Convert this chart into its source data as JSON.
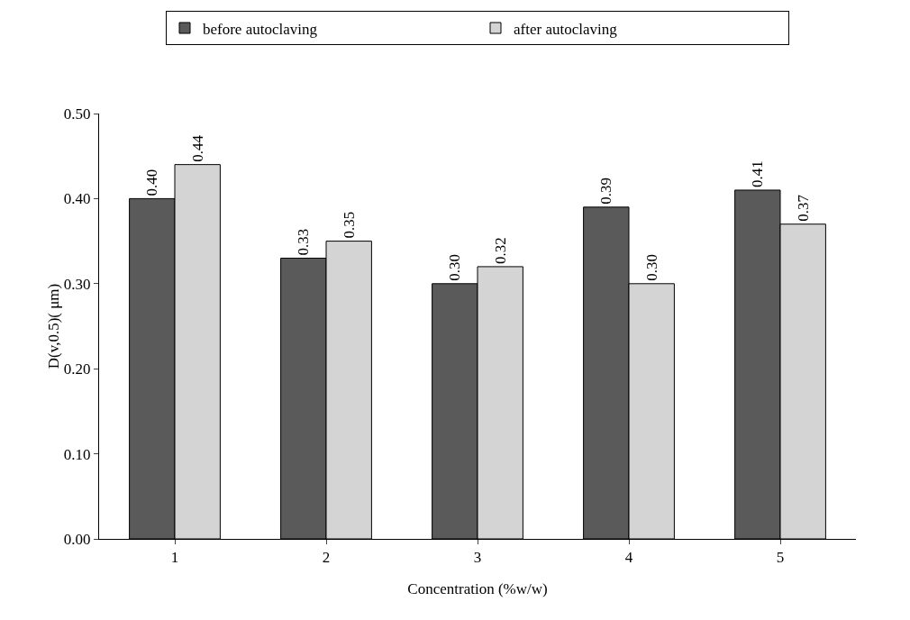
{
  "chart_data": {
    "type": "bar",
    "xlabel": "Concentration (%w/w)",
    "ylabel": "D(v,0.5)( μm)",
    "categories": [
      "1",
      "2",
      "3",
      "4",
      "5"
    ],
    "series": [
      {
        "name": "before autoclaving",
        "color": "#5a5a5a",
        "values": [
          0.4,
          0.33,
          0.3,
          0.39,
          0.41
        ],
        "value_labels": [
          "0.40",
          "0.33",
          "0.30",
          "0.39",
          "0.41"
        ]
      },
      {
        "name": "after autoclaving",
        "color": "#d4d4d4",
        "values": [
          0.44,
          0.35,
          0.32,
          0.3,
          0.37
        ],
        "value_labels": [
          "0.44",
          "0.35",
          "0.32",
          "0.30",
          "0.37"
        ]
      }
    ],
    "ylim": [
      0,
      0.5
    ],
    "yticks": [
      {
        "value": 0,
        "label": "0.00"
      },
      {
        "value": 0.1,
        "label": "0.10"
      },
      {
        "value": 0.2,
        "label": "0.20"
      },
      {
        "value": 0.3,
        "label": "0.30"
      },
      {
        "value": 0.4,
        "label": "0.40"
      },
      {
        "value": 0.5,
        "label": "0.50"
      }
    ],
    "grid": false,
    "legend": "top"
  }
}
